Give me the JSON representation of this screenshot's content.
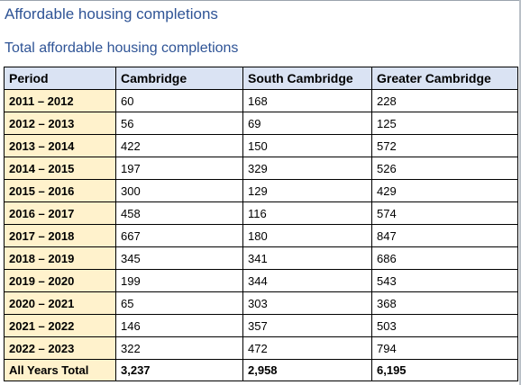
{
  "heading": "Affordable housing completions",
  "subheading": "Total affordable housing completions",
  "table": {
    "headers": [
      "Period",
      "Cambridge",
      "South Cambridge",
      "Greater Cambridge"
    ],
    "rows": [
      [
        "2011 – 2012",
        "60",
        "168",
        "228"
      ],
      [
        "2012 – 2013",
        "56",
        "69",
        "125"
      ],
      [
        "2013 – 2014",
        "422",
        "150",
        "572"
      ],
      [
        "2014 – 2015",
        "197",
        "329",
        "526"
      ],
      [
        "2015 – 2016",
        "300",
        "129",
        "429"
      ],
      [
        "2016 – 2017",
        "458",
        "116",
        "574"
      ],
      [
        "2017 – 2018",
        "667",
        "180",
        "847"
      ],
      [
        "2018 – 2019",
        "345",
        "341",
        "686"
      ],
      [
        "2019 – 2020",
        "199",
        "344",
        "543"
      ],
      [
        "2020 – 2021",
        "65",
        "303",
        "368"
      ],
      [
        "2021 – 2022",
        "146",
        "357",
        "503"
      ],
      [
        "2022 – 2023",
        "322",
        "472",
        "794"
      ]
    ],
    "total": [
      "All Years Total",
      "3,237",
      "2,958",
      "6,195"
    ]
  },
  "colors": {
    "heading": "#2f5496",
    "header_fill": "#dae3f3",
    "period_fill": "#fff2cc"
  }
}
